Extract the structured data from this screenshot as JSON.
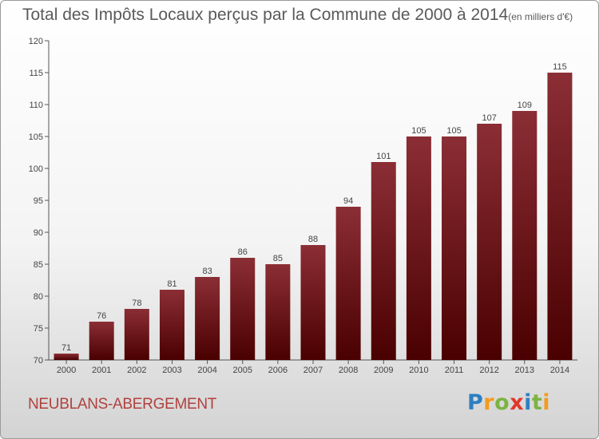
{
  "chart_data": {
    "type": "bar",
    "title": "Total des Impôts Locaux perçus par la Commune de 2000 à 2014",
    "subtitle": "(en milliers d'€)",
    "categories": [
      "2000",
      "2001",
      "2002",
      "2003",
      "2004",
      "2005",
      "2006",
      "2007",
      "2008",
      "2009",
      "2010",
      "2011",
      "2012",
      "2013",
      "2014"
    ],
    "values": [
      71,
      76,
      78,
      81,
      83,
      86,
      85,
      88,
      94,
      101,
      105,
      105,
      107,
      109,
      115
    ],
    "ylim": [
      70,
      120
    ],
    "yticks": [
      70,
      75,
      80,
      85,
      90,
      95,
      100,
      105,
      110,
      115,
      120
    ],
    "grid": false,
    "legend": "none",
    "bar_color_top": "#8b2e35",
    "bar_color_bottom": "#4a0000"
  },
  "commune_name": "NEUBLANS-ABERGEMENT",
  "logo": {
    "letters": [
      "P",
      "r",
      "o",
      "x",
      "i",
      "t",
      "i"
    ]
  }
}
